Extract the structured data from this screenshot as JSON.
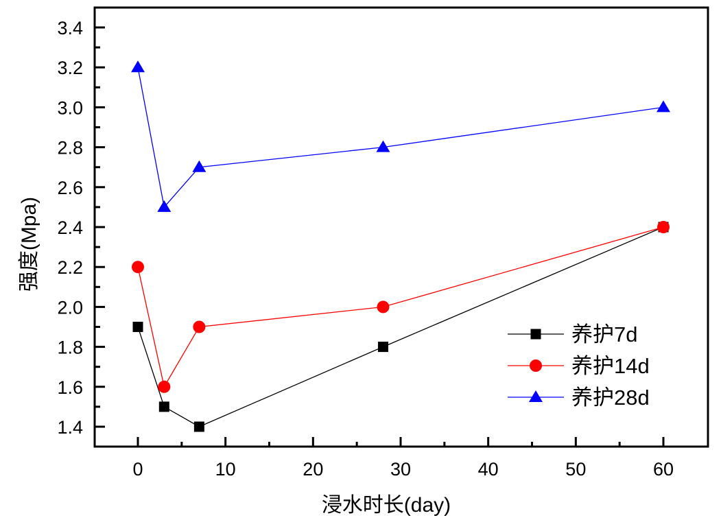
{
  "chart_data": {
    "type": "line",
    "title": "",
    "xlabel": "浸水时长(day)",
    "ylabel": "强度(Mpa)",
    "xlim": [
      -5,
      65
    ],
    "ylim": [
      1.3,
      3.5
    ],
    "xticks": [
      0,
      10,
      20,
      30,
      40,
      50,
      60
    ],
    "xtick_labels": [
      "0",
      "10",
      "20",
      "30",
      "40",
      "50",
      "60"
    ],
    "yticks": [
      1.4,
      1.6,
      1.8,
      2.0,
      2.2,
      2.4,
      2.6,
      2.8,
      3.0,
      3.2,
      3.4
    ],
    "ytick_labels": [
      "1.4",
      "1.6",
      "1.8",
      "2.0",
      "2.2",
      "2.4",
      "2.6",
      "2.8",
      "3.0",
      "3.2",
      "3.4"
    ],
    "grid": false,
    "legend_position": "center-right",
    "x": [
      0,
      3,
      7,
      28,
      60
    ],
    "series": [
      {
        "name": "养护7d",
        "marker": "square",
        "color": "#000000",
        "values": [
          1.9,
          1.5,
          1.4,
          1.8,
          2.4
        ]
      },
      {
        "name": "养护14d",
        "marker": "circle",
        "color": "#ff0000",
        "values": [
          2.2,
          1.6,
          1.9,
          2.0,
          2.4
        ]
      },
      {
        "name": "养护28d",
        "marker": "triangle",
        "color": "#0000ff",
        "values": [
          3.2,
          2.5,
          2.7,
          2.8,
          3.0
        ]
      }
    ]
  }
}
